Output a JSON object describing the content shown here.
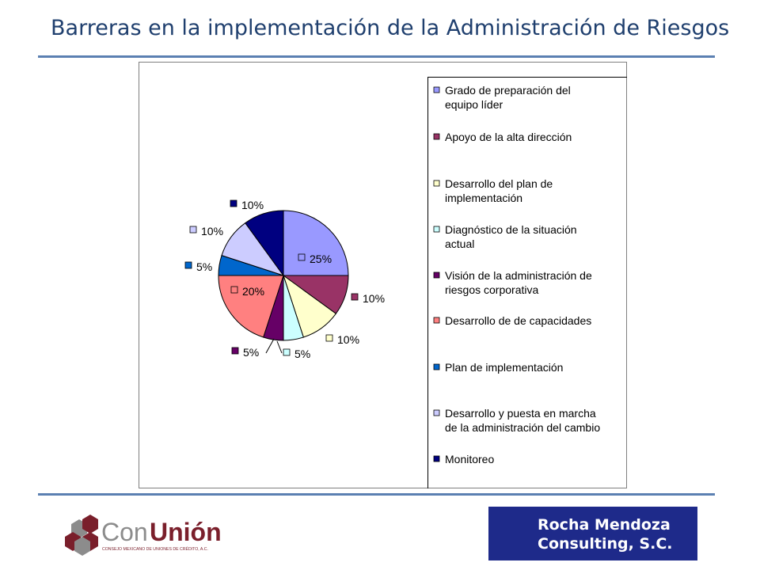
{
  "page": {
    "title": "Barreras en la implementación de la Administración de Riesgos"
  },
  "chart_data": {
    "type": "pie",
    "title": "",
    "slices": [
      {
        "label": "Grado de preparación del equipo líder",
        "value": 25,
        "label_text": "25%",
        "color": "#9999ff"
      },
      {
        "label": "Apoyo de la alta dirección",
        "value": 10,
        "label_text": "10%",
        "color": "#993366"
      },
      {
        "label": "Desarrollo del plan de implementación",
        "value": 10,
        "label_text": "10%",
        "color": "#ffffcc"
      },
      {
        "label": "Diagnóstico de la situación actual",
        "value": 5,
        "label_text": "5%",
        "color": "#ccffff"
      },
      {
        "label": "Visión de la administración de riesgos corporativa",
        "value": 5,
        "label_text": "5%",
        "color": "#660066"
      },
      {
        "label": "Desarrollo de de capacidades",
        "value": 20,
        "label_text": "20%",
        "color": "#ff8080"
      },
      {
        "label": "Plan de implementación",
        "value": 5,
        "label_text": "5%",
        "color": "#0066cc"
      },
      {
        "label": "Desarrollo y puesta en marcha de la administración del cambio",
        "value": 10,
        "label_text": "10%",
        "color": "#ccccff"
      },
      {
        "label": "Monitoreo",
        "value": 10,
        "label_text": "10%",
        "color": "#000080"
      }
    ],
    "legend": {
      "placement": "right",
      "entries": [
        [
          "Grado de preparación del",
          "equipo líder"
        ],
        [
          "Apoyo de la alta dirección"
        ],
        [
          "Desarrollo del plan de",
          "implementación"
        ],
        [
          "Diagnóstico de la situación",
          "actual"
        ],
        [
          "Visión de la administración de",
          "riesgos corporativa"
        ],
        [
          "Desarrollo de de capacidades"
        ],
        [
          "Plan de implementación"
        ],
        [
          "Desarrollo y puesta en marcha",
          "de la administración del cambio"
        ],
        [
          "Monitoreo"
        ]
      ]
    }
  },
  "footer": {
    "logo_left": {
      "brand_prefix": "Con",
      "brand_bold": "Unión",
      "tagline": "CONSEJO MEXICANO DE UNIONES DE CRÉDITO, A.C.",
      "colors": {
        "gray": "#8c8c8c",
        "maroon": "#7a1f2b"
      }
    },
    "logo_right": {
      "line1": "Rocha Mendoza",
      "line2": "Consulting, S.C.",
      "background": "#1e2a8a"
    }
  }
}
